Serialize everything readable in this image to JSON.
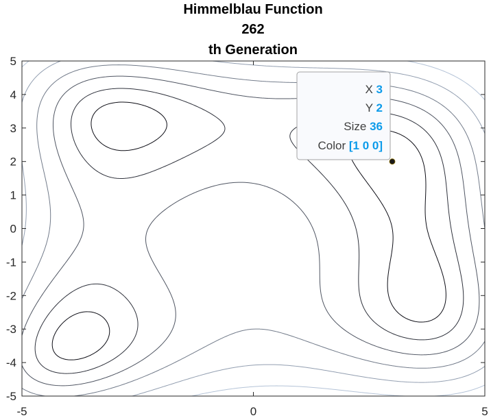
{
  "chart_data": {
    "type": "contour",
    "title": [
      "Himmelblau Function",
      "262",
      "th Generation"
    ],
    "xlabel": "",
    "ylabel": "",
    "xlim": [
      -5,
      5
    ],
    "ylim": [
      -5,
      5
    ],
    "xticks": [
      "-5",
      "0",
      "5"
    ],
    "yticks": [
      "5",
      "4",
      "3",
      "2",
      "1",
      "0",
      "-1",
      "-2",
      "-3",
      "-4",
      "-5"
    ],
    "function": "(x^2 + y - 11)^2 + (x + y^2 - 7)^2",
    "contour_levels": [
      20,
      60,
      120,
      200,
      320,
      480
    ],
    "grid": false,
    "legend": "none",
    "points": [
      {
        "x": 3,
        "y": 2,
        "size": 36,
        "color": [
          1,
          0,
          0
        ]
      }
    ],
    "datatip": {
      "rows": [
        {
          "key": "X",
          "value": "3"
        },
        {
          "key": "Y",
          "value": "2"
        },
        {
          "key": "Size",
          "value": "36"
        },
        {
          "key": "Color",
          "value": "[1 0 0]"
        }
      ]
    },
    "colors": {
      "contour_low": "#0c0c14",
      "contour_high": "#b4c3d7",
      "marker": "#1a1a1a",
      "datatip_value": "#0d9bea",
      "axis": "#262626"
    }
  }
}
